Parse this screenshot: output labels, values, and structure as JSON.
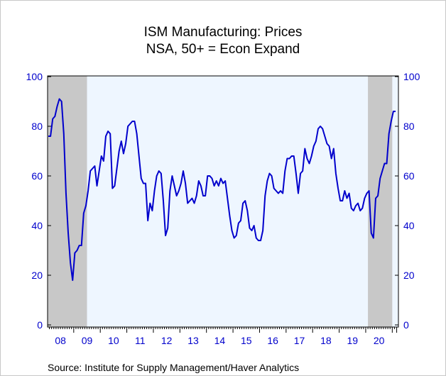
{
  "chart_data": {
    "type": "line",
    "title": "ISM Manufacturing: Prices",
    "subtitle": "NSA, 50+ = Econ Expand",
    "source": "Source:   Institute for Supply Management/Haver Analytics",
    "start_year": 2008,
    "start_month": 1,
    "x_tick_labels": [
      "08",
      "09",
      "10",
      "11",
      "12",
      "13",
      "14",
      "15",
      "16",
      "17",
      "18",
      "19",
      "20"
    ],
    "y_ticks": [
      0,
      20,
      40,
      60,
      80,
      100
    ],
    "ylim": [
      0,
      100
    ],
    "grid": false,
    "recession_shading": [
      {
        "start": "2008-01",
        "end": "2009-06"
      },
      {
        "start": "2020-02",
        "end": "2020-12"
      }
    ],
    "colors": {
      "line": "#0000cc",
      "axis_text": "#0000cc",
      "plot_bg": "#eef6ff",
      "shade": "#c8c8c8"
    },
    "series": [
      {
        "values": [
          76,
          76,
          83,
          84,
          88,
          91,
          90,
          77,
          53,
          37,
          25,
          18,
          29,
          30,
          32,
          32,
          45,
          48,
          54,
          62,
          63,
          64,
          56,
          62,
          68,
          66,
          76,
          78,
          77,
          55,
          56,
          63,
          70,
          74,
          69,
          73,
          80,
          81,
          82,
          82,
          77,
          68,
          59,
          57,
          57,
          42,
          49,
          46,
          54,
          60,
          62,
          61,
          50,
          36,
          39,
          54,
          60,
          56,
          52,
          54,
          57,
          62,
          57,
          49,
          50,
          51,
          49,
          52,
          58,
          56,
          52,
          52,
          60,
          60,
          59,
          56,
          58,
          56,
          59,
          57,
          58,
          51,
          44,
          38,
          35,
          36,
          41,
          42,
          49,
          50,
          46,
          39,
          38,
          40,
          35,
          34,
          34,
          38,
          52,
          58,
          61,
          60,
          55,
          54,
          53,
          54,
          53,
          62,
          67,
          67,
          68,
          68,
          61,
          53,
          61,
          62,
          71,
          67,
          65,
          68,
          72,
          74,
          79,
          80,
          79,
          76,
          73,
          72,
          67,
          71,
          61,
          55,
          50,
          50,
          54,
          51,
          53,
          47,
          46,
          48,
          49,
          46,
          47,
          51,
          53,
          54,
          37,
          35,
          51,
          52,
          59,
          62,
          65,
          65,
          77,
          82,
          86,
          86
        ]
      }
    ]
  }
}
